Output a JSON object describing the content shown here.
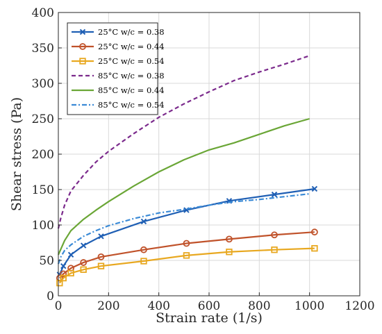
{
  "chart_data": {
    "type": "line",
    "title": "",
    "xlabel": "Strain rate (1/s)",
    "ylabel": "Shear stress (Pa)",
    "xlim": [
      0,
      1200
    ],
    "ylim": [
      0,
      400
    ],
    "xticks": [
      "0",
      "200",
      "400",
      "600",
      "800",
      "1000",
      "1200"
    ],
    "yticks": [
      "0",
      "50",
      "100",
      "150",
      "200",
      "250",
      "300",
      "350",
      "400"
    ],
    "grid": true,
    "legend_position": "top-left",
    "series": [
      {
        "name": "25°C w/c = 0.38",
        "color": "#1f5fb4",
        "line": "solid",
        "marker": "x",
        "x": [
          5,
          20,
          50,
          100,
          170,
          340,
          510,
          680,
          860,
          1020
        ],
        "y": [
          30,
          42,
          58,
          71,
          84,
          105,
          121,
          134,
          143,
          151
        ]
      },
      {
        "name": "25°C w/c = 0.44",
        "color": "#c0522a",
        "line": "solid",
        "marker": "circle",
        "x": [
          5,
          20,
          50,
          100,
          170,
          340,
          510,
          680,
          860,
          1020
        ],
        "y": [
          25,
          31,
          39,
          47,
          55,
          65,
          74,
          80,
          86,
          90
        ]
      },
      {
        "name": "25°C w/c = 0.54",
        "color": "#e8a820",
        "line": "solid",
        "marker": "square",
        "x": [
          5,
          20,
          50,
          100,
          170,
          340,
          510,
          680,
          860,
          1020
        ],
        "y": [
          18,
          25,
          32,
          37,
          42,
          49,
          57,
          62,
          65,
          67
        ]
      },
      {
        "name": "85°C w/c = 0.38",
        "color": "#7b2a8c",
        "line": "dashed",
        "marker": "none",
        "x": [
          0,
          10,
          25,
          50,
          100,
          150,
          200,
          300,
          400,
          500,
          600,
          700,
          800,
          900,
          1000
        ],
        "y": [
          95,
          110,
          128,
          148,
          170,
          189,
          204,
          229,
          252,
          271,
          288,
          304,
          316,
          327,
          339
        ]
      },
      {
        "name": "85°C w/c = 0.44",
        "color": "#6aa636",
        "line": "solid",
        "marker": "none",
        "x": [
          0,
          10,
          25,
          50,
          100,
          150,
          200,
          300,
          400,
          500,
          600,
          700,
          800,
          900,
          1000
        ],
        "y": [
          58,
          66,
          78,
          92,
          108,
          121,
          133,
          155,
          175,
          192,
          206,
          216,
          228,
          240,
          250
        ]
      },
      {
        "name": "85°C w/c = 0.54",
        "color": "#3a8ad6",
        "line": "dashdot",
        "marker": "none",
        "x": [
          0,
          10,
          25,
          50,
          100,
          150,
          200,
          300,
          400,
          500,
          600,
          700,
          800,
          900,
          1000
        ],
        "y": [
          45,
          55,
          64,
          72,
          84,
          92,
          99,
          109,
          117,
          122,
          128,
          133,
          136,
          140,
          144
        ]
      }
    ]
  }
}
